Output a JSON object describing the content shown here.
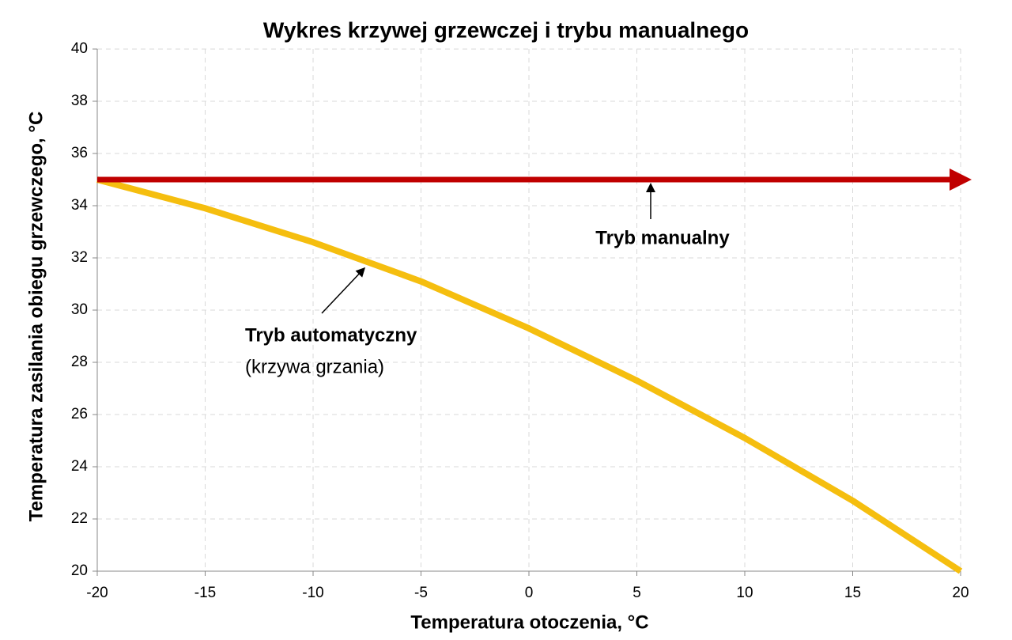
{
  "chart_data": {
    "type": "line",
    "title": "Wykres krzywej grzewczej i trybu manualnego",
    "x_label": "Temperatura otoczenia, °C",
    "y_label": "Temperatura zasilania obiegu grzewczego, °C",
    "x": [
      -20,
      -15,
      -10,
      -5,
      0,
      5,
      10,
      15,
      20
    ],
    "series": [
      {
        "name": "Tryb automatyczny",
        "color": "#f5be0f",
        "values": [
          35,
          33.9,
          32.6,
          31.1,
          29.3,
          27.3,
          25.1,
          22.7,
          20.0
        ]
      },
      {
        "name": "Tryb manualny",
        "color": "#c00000",
        "values": [
          35,
          35,
          35,
          35,
          35,
          35,
          35,
          35,
          35
        ]
      }
    ],
    "annotations": [
      "(krzywa grzania)"
    ],
    "xlim": [
      -20,
      20
    ],
    "ylim": [
      20,
      40
    ],
    "xticks": [
      -20,
      -15,
      -10,
      -5,
      0,
      5,
      10,
      15,
      20
    ],
    "yticks": [
      20,
      22,
      24,
      26,
      28,
      30,
      32,
      34,
      36,
      38,
      40
    ],
    "grid": true
  }
}
